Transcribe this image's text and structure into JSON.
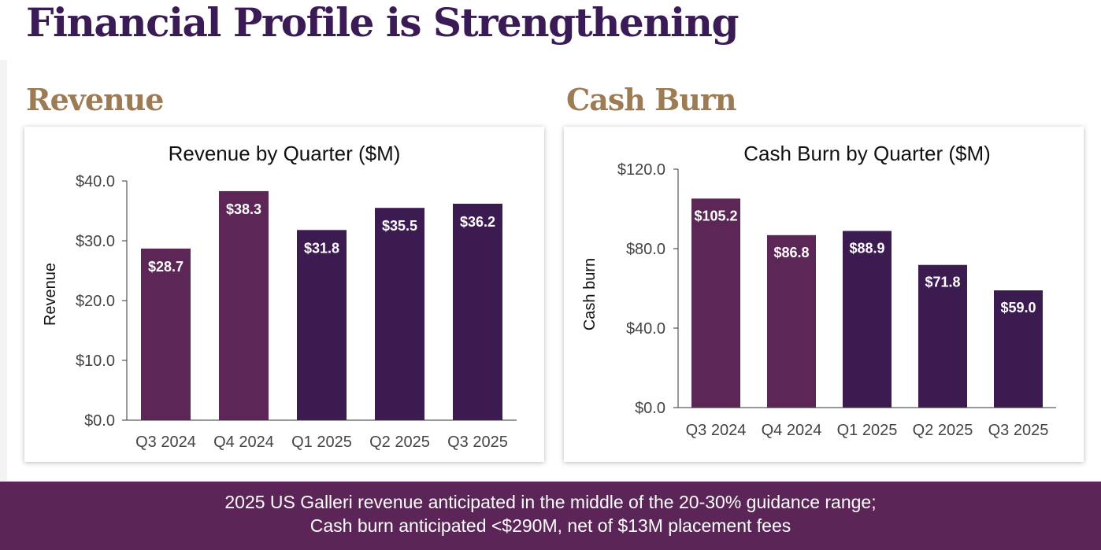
{
  "page": {
    "title": "Financial Profile is Strengthening"
  },
  "sections": {
    "revenue": "Revenue",
    "cash_burn": "Cash Burn"
  },
  "colors": {
    "title": "#3b1b55",
    "section_title": "#9c7b55",
    "bar_light": "#5c2657",
    "bar_dark": "#3b1b50",
    "banner": "#5b2558"
  },
  "banner": {
    "line1": "2025 US Galleri revenue anticipated in the middle of the 20-30% guidance range;",
    "line2": "Cash burn anticipated <$290M, net of $13M placement fees"
  },
  "chart_data": [
    {
      "type": "bar",
      "title": "Revenue by Quarter ($M)",
      "xlabel": "",
      "ylabel": "Revenue",
      "categories": [
        "Q3 2024",
        "Q4 2024",
        "Q1 2025",
        "Q2 2025",
        "Q3 2025"
      ],
      "values": [
        28.7,
        38.3,
        31.8,
        35.5,
        36.2
      ],
      "data_labels": [
        "$28.7",
        "$38.3",
        "$31.8",
        "$35.5",
        "$36.2"
      ],
      "bar_colors": [
        "#5c2657",
        "#5c2657",
        "#3b1b50",
        "#3b1b50",
        "#3b1b50"
      ],
      "ylim": [
        0,
        40
      ],
      "yticks": [
        0,
        10,
        20,
        30,
        40
      ],
      "ytick_labels": [
        "$0.0",
        "$10.0",
        "$20.0",
        "$30.0",
        "$40.0"
      ],
      "grid": false,
      "legend": "none"
    },
    {
      "type": "bar",
      "title": "Cash Burn by Quarter ($M)",
      "xlabel": "",
      "ylabel": "Cash burn",
      "categories": [
        "Q3 2024",
        "Q4 2024",
        "Q1 2025",
        "Q2 2025",
        "Q3 2025"
      ],
      "values": [
        105.2,
        86.8,
        88.9,
        71.8,
        59.0
      ],
      "data_labels": [
        "$105.2",
        "$86.8",
        "$88.9",
        "$71.8",
        "$59.0"
      ],
      "bar_colors": [
        "#5c2657",
        "#5c2657",
        "#3b1b50",
        "#3b1b50",
        "#3b1b50"
      ],
      "ylim": [
        0,
        120
      ],
      "yticks": [
        0,
        40,
        80,
        120
      ],
      "ytick_labels": [
        "$0.0",
        "$40.0",
        "$80.0",
        "$120.0"
      ],
      "grid": false,
      "legend": "none"
    }
  ]
}
